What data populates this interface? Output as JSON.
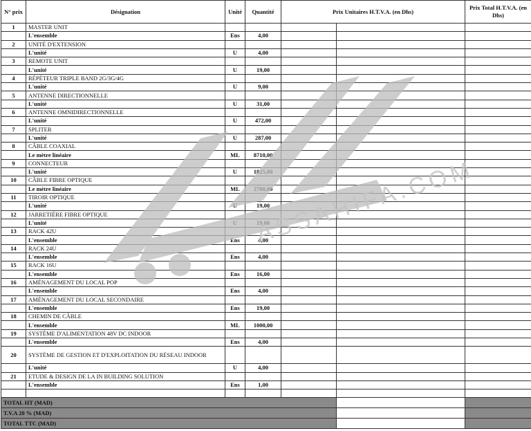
{
  "header": {
    "num": "N° prix",
    "designation": "Désignation",
    "unit": "Unité",
    "quantity": "Quantité",
    "unit_price": "Prix Unitaires  H.T.V.A. (en Dhs)",
    "total_price": "Prix Total H.T.V.A. (en Dhs)"
  },
  "items": [
    {
      "n": "1",
      "label": "MASTER UNIT",
      "sub": "L'ensemble",
      "unit": "Ens",
      "qty": "4,00"
    },
    {
      "n": "2",
      "label": "UNITÉ D'EXTENSION",
      "sub": "L'unité",
      "unit": "U",
      "qty": "4,00"
    },
    {
      "n": "3",
      "label": "REMOTE UNIT",
      "sub": "L'unité",
      "unit": "U",
      "qty": "19,00"
    },
    {
      "n": "4",
      "label": "RÉPÉTEUR TRIPLE BAND 2G/3G/4G",
      "sub": "L'unité",
      "unit": "U",
      "qty": "9,00"
    },
    {
      "n": "5",
      "label": "ANTENNE DIRECTIONNELLE",
      "sub": "L'unité",
      "unit": "U",
      "qty": "31,00"
    },
    {
      "n": "6",
      "label": "ANTENNE OMNIDIRECTIONNELLE",
      "sub": "L'unité",
      "unit": "U",
      "qty": "472,00"
    },
    {
      "n": "7",
      "label": "SPLITER",
      "sub": "L'unité",
      "unit": "U",
      "qty": "287,00"
    },
    {
      "n": "8",
      "label": "CÂBLE COAXIAL",
      "sub": "Le mètre linéaire",
      "unit": "ML",
      "qty": "8710,00"
    },
    {
      "n": "9",
      "label": "CONNECTEUR",
      "sub": "L'unité",
      "unit": "U",
      "qty": "1825,00"
    },
    {
      "n": "10",
      "label": "CÂBLE FIBRE OPTIQUE",
      "sub": "Le mètre linéaire",
      "unit": "ML",
      "qty": "2700,00"
    },
    {
      "n": "11",
      "label": "TIROIR OPTIQUE",
      "sub": "L'unité",
      "unit": "U",
      "qty": "19,00"
    },
    {
      "n": "12",
      "label": "JARRETIÈRE FIBRE OPTIQUE",
      "sub": "L'unité",
      "unit": "U",
      "qty": "19,00"
    },
    {
      "n": "13",
      "label": "RACK 42U",
      "sub": "L'ensemble",
      "unit": "Ens",
      "qty": "4,00"
    },
    {
      "n": "14",
      "label": "RACK 24U",
      "sub": "L'ensemble",
      "unit": "Ens",
      "qty": "4,00"
    },
    {
      "n": "15",
      "label": "RACK 16U",
      "sub": "L'ensemble",
      "unit": "Ens",
      "qty": "16,00"
    },
    {
      "n": "16",
      "label": "AMÉNAGEMENT DU LOCAL POP",
      "sub": "L'ensemble",
      "unit": "Ens",
      "qty": "4,00"
    },
    {
      "n": "17",
      "label": "AMÉNAGEMENT DU LOCAL SECONDAIRE",
      "sub": "L'ensemble",
      "unit": "Ens",
      "qty": "19,00"
    },
    {
      "n": "18",
      "label": "CHEMIN DE CÂBLE",
      "sub": "L'ensemble",
      "unit": "ML",
      "qty": "1000,00"
    },
    {
      "n": "19",
      "label": "SYSTÈME D'ALIMENTATION 48V DC INDOOR",
      "sub": "L'ensemble",
      "unit": "Ens",
      "qty": "4,00"
    },
    {
      "n": "20",
      "label": "SYSTÈME DE GESTION ET D'EXPLOITATION DU RÉSEAU INDOOR",
      "sub": "L'unité",
      "unit": "U",
      "qty": "4,00",
      "tall": true
    },
    {
      "n": "21",
      "label": "ETUDE & DESIGN DE LA IN BUILDING SOLUTION",
      "sub": "L'ensemble",
      "unit": "Ens",
      "qty": "1,00"
    }
  ],
  "totals": [
    "TOTAL  HT (MAD)",
    "T.V.A 20 % (MAD)",
    "TOTAL  TTC (MAD)"
  ],
  "watermark": {
    "text": "ASSAHIFA.COM",
    "color": "#bdbdbd"
  }
}
